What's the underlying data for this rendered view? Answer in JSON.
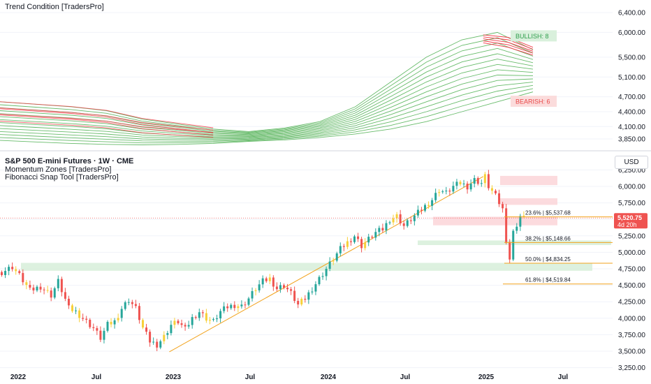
{
  "top_panel": {
    "indicator_title": "Trend Condition [TradersPro]"
  },
  "main_panel": {
    "symbol_title": "S&P 500 E-mini Futures · 1W · CME",
    "indicators": [
      "Momentum Zones [TradersPro]",
      "Fibonacci Snap Tool [TradersPro]"
    ],
    "currency_button": "USD",
    "last_price": "5,520.75",
    "countdown": "4d 20h"
  },
  "colors": {
    "bull": "#26a69a",
    "bear": "#ef5350",
    "neutral": "#f7d038",
    "fib": "#f2a21b",
    "ribbon_green": "#4caf50",
    "ribbon_red": "#f23645"
  },
  "chart_data": [
    {
      "type": "line",
      "title": "Trend Condition [TradersPro]",
      "yticks": [
        "6,400.00",
        "6,000.00",
        "5,500.00",
        "5,100.00",
        "4,700.00",
        "4,400.00",
        "4,100.00",
        "3,850.00"
      ],
      "ylim": [
        3750,
        6450
      ],
      "badges": [
        {
          "text": "BULLISH: 8",
          "value": 5930
        },
        {
          "text": "BEARISH: 6",
          "value": 4610
        }
      ],
      "ribbon_tops": [
        4600,
        4550,
        4500,
        4420,
        4250,
        4150,
        4050,
        4000,
        4070,
        4200,
        4500,
        5000,
        5500,
        5850,
        6000,
        5650
      ],
      "ribbon_bottoms": [
        3820,
        3790,
        3760,
        3740,
        3730,
        3740,
        3760,
        3800,
        3830,
        3880,
        3950,
        4050,
        4200,
        4400,
        4600,
        4800
      ],
      "ribbon_lines": 14,
      "grid": true
    },
    {
      "type": "candlestick",
      "title": "S&P 500 E-mini Futures · 1W · CME",
      "xticks": [
        "2022",
        "Jul",
        "2023",
        "Jul",
        "2024",
        "Jul",
        "2025",
        "Jul"
      ],
      "yticks": [
        "6,250.00",
        "6,000.00",
        "5,750.00",
        "5,500.00",
        "5,250.00",
        "5,000.00",
        "4,750.00",
        "4,500.00",
        "4,250.00",
        "4,000.00",
        "3,750.00",
        "3,500.00",
        "3,250.00"
      ],
      "ylim": [
        3200,
        6300
      ],
      "close_path": [
        [
          0,
          4700
        ],
        [
          3,
          4780
        ],
        [
          5,
          4650
        ],
        [
          8,
          4420
        ],
        [
          11,
          4480
        ],
        [
          14,
          4350
        ],
        [
          16,
          4560
        ],
        [
          19,
          4150
        ],
        [
          21,
          4100
        ],
        [
          24,
          3950
        ],
        [
          26,
          3850
        ],
        [
          28,
          3700
        ],
        [
          30,
          3900
        ],
        [
          32,
          3950
        ],
        [
          34,
          4150
        ],
        [
          36,
          4280
        ],
        [
          38,
          4150
        ],
        [
          40,
          3850
        ],
        [
          42,
          3650
        ],
        [
          44,
          3600
        ],
        [
          46,
          3720
        ],
        [
          48,
          3900
        ],
        [
          50,
          3950
        ],
        [
          52,
          3830
        ],
        [
          54,
          4000
        ],
        [
          56,
          4100
        ],
        [
          58,
          4000
        ],
        [
          60,
          3950
        ],
        [
          62,
          4100
        ],
        [
          64,
          4170
        ],
        [
          66,
          4200
        ],
        [
          68,
          4180
        ],
        [
          70,
          4300
        ],
        [
          72,
          4450
        ],
        [
          74,
          4560
        ],
        [
          76,
          4600
        ],
        [
          78,
          4450
        ],
        [
          80,
          4500
        ],
        [
          82,
          4380
        ],
        [
          84,
          4200
        ],
        [
          86,
          4300
        ],
        [
          88,
          4450
        ],
        [
          90,
          4600
        ],
        [
          92,
          4750
        ],
        [
          94,
          4900
        ],
        [
          96,
          5050
        ],
        [
          98,
          5150
        ],
        [
          100,
          5250
        ],
        [
          102,
          5100
        ],
        [
          104,
          5200
        ],
        [
          106,
          5300
        ],
        [
          108,
          5350
        ],
        [
          110,
          5500
        ],
        [
          112,
          5550
        ],
        [
          114,
          5400
        ],
        [
          116,
          5500
        ],
        [
          118,
          5600
        ],
        [
          120,
          5700
        ],
        [
          122,
          5800
        ],
        [
          124,
          5950
        ],
        [
          126,
          5900
        ],
        [
          128,
          6000
        ],
        [
          130,
          6050
        ],
        [
          132,
          6000
        ],
        [
          134,
          6100
        ],
        [
          136,
          6050
        ],
        [
          137,
          6150
        ],
        [
          138,
          6000
        ],
        [
          140,
          5850
        ],
        [
          142,
          5650
        ],
        [
          143,
          5200
        ],
        [
          144,
          4900
        ],
        [
          145,
          5300
        ],
        [
          147,
          5550
        ],
        [
          148,
          5520.75
        ]
      ],
      "annotations": [
        "23.6% | $5,537.68",
        "38.2% | $5,148.66",
        "50.0% | $4,834.25",
        "61.8% | $4,519.84"
      ],
      "fib_levels": [
        5537.68,
        5148.66,
        4834.25,
        4519.84
      ],
      "zones": [
        {
          "type": "supply",
          "from": 6020,
          "to": 6160
        },
        {
          "type": "supply",
          "from": 5720,
          "to": 5820
        },
        {
          "type": "supply",
          "from": 5410,
          "to": 5540
        },
        {
          "type": "demand",
          "from": 5110,
          "to": 5180
        },
        {
          "type": "demand",
          "from": 4720,
          "to": 4840
        }
      ],
      "trendline": [
        [
          48,
          3490
        ],
        [
          137,
          6150
        ]
      ],
      "last_price": 5520.75,
      "grid": true
    }
  ]
}
